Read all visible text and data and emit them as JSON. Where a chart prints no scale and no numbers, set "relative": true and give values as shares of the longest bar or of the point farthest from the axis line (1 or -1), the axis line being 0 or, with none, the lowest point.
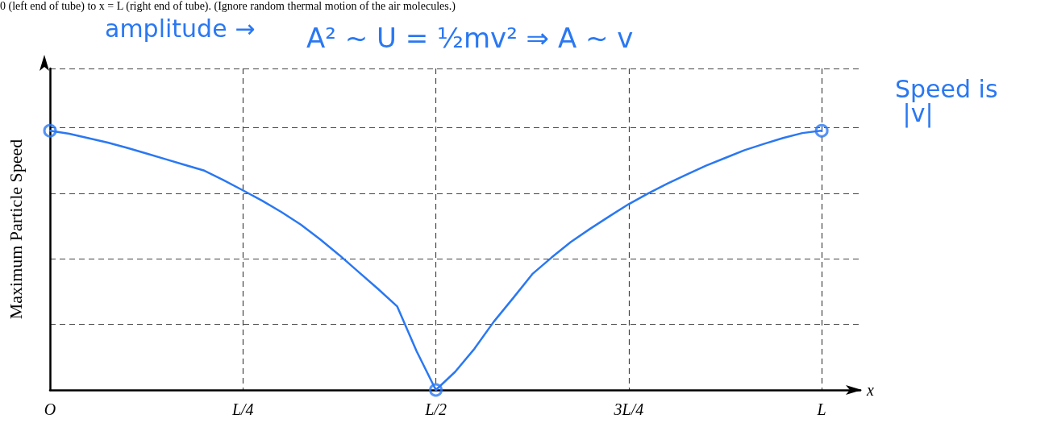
{
  "chart_data": {
    "type": "line",
    "relative": true,
    "xlabel": "x",
    "ylabel": "Maximum Particle Speed",
    "categories": [
      "O",
      null,
      null,
      null,
      null,
      null,
      null,
      null,
      null,
      null,
      "L/4",
      null,
      null,
      null,
      null,
      null,
      null,
      null,
      null,
      null,
      "L/2",
      null,
      null,
      null,
      null,
      null,
      null,
      null,
      null,
      null,
      "3L/4",
      null,
      null,
      null,
      null,
      null,
      null,
      null,
      null,
      null,
      "L",
      null,
      null
    ],
    "grid": true,
    "marker": "none",
    "line_style": "solid",
    "series": [
      {
        "color": "#2a78f2",
        "values": [
          1,
          0.988,
          0.971,
          0.954,
          0.934,
          0.912,
          0.89,
          0.868,
          0.846,
          0.809,
          0.77,
          0.73,
          0.686,
          0.638,
          0.581,
          0.52,
          0.455,
          0.39,
          0.322,
          0.15,
          0,
          0.07,
          0.159,
          0.263,
          0.354,
          0.447,
          0.511,
          0.571,
          0.622,
          0.67,
          0.717,
          0.758,
          0.796,
          0.831,
          0.865,
          0.895,
          0.925,
          0.949,
          0.972,
          0.991,
          1,
          null,
          null
        ]
      },
      {
        "type": "scatter",
        "marker": "circle",
        "color": "#2a78f2",
        "values": [
          1,
          null,
          null,
          null,
          null,
          null,
          null,
          null,
          null,
          null,
          null,
          null,
          null,
          null,
          null,
          null,
          null,
          null,
          null,
          null,
          0,
          null,
          null,
          null,
          null,
          null,
          null,
          null,
          null,
          null,
          null,
          null,
          null,
          null,
          null,
          null,
          null,
          null,
          null,
          null,
          1,
          null,
          null
        ]
      }
    ],
    "annotations": [
      "0 (left end of tube) to x = L (right end of tube). (Ignore random thermal motion of the air molecules.)",
      "amplitude →",
      "A² ~ U = ½mv² ⇒ A ~ v",
      "Speed is |v|"
    ]
  }
}
